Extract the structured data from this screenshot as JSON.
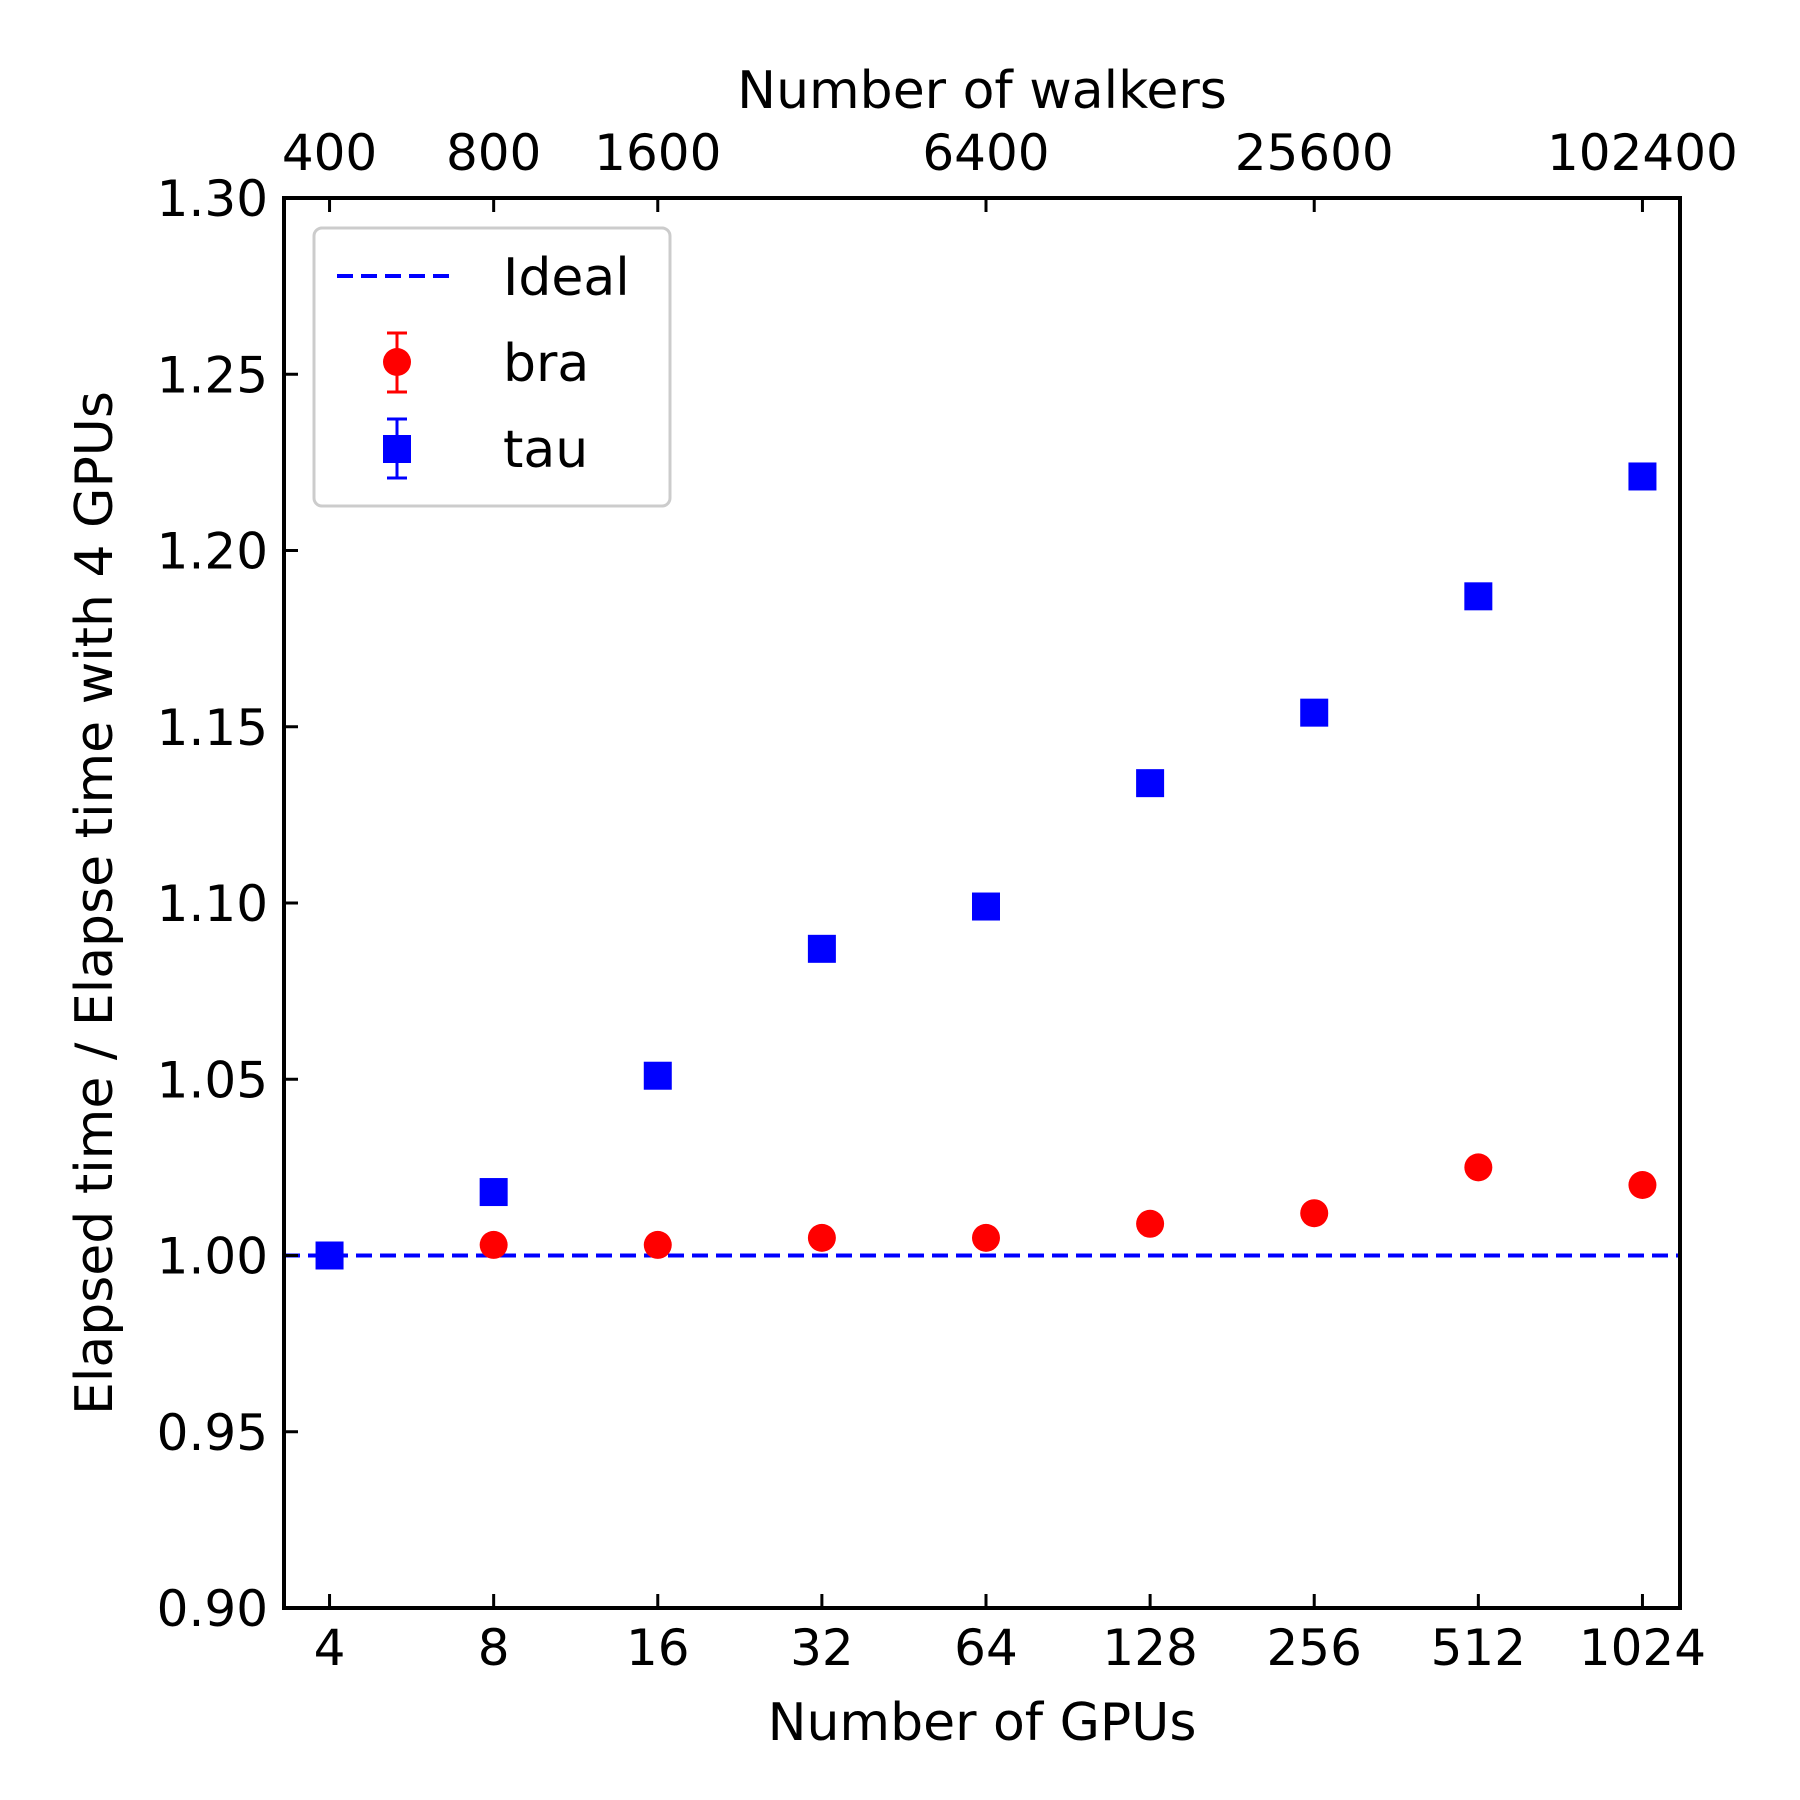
{
  "chart_data": {
    "type": "scatter",
    "xlabel": "Number of GPUs",
    "ylabel": "Elapsed time / Elapse time with 4 GPUs",
    "x2label": "Number of walkers",
    "x_scale": "log2",
    "xlim_gpus": [
      3.3,
      1200
    ],
    "ylim": [
      0.9,
      1.3
    ],
    "xticks": [
      4,
      8,
      16,
      32,
      64,
      128,
      256,
      512,
      1024
    ],
    "xtick_labels": [
      "4",
      "8",
      "16",
      "32",
      "64",
      "128",
      "256",
      "512",
      "1024"
    ],
    "x2ticks_gpus": [
      4,
      8,
      16,
      64,
      256,
      1024
    ],
    "x2tick_labels": [
      "400",
      "800",
      "1600",
      "6400",
      "25600",
      "102400"
    ],
    "yticks": [
      0.9,
      0.95,
      1.0,
      1.05,
      1.1,
      1.15,
      1.2,
      1.25,
      1.3
    ],
    "ytick_labels": [
      "0.90",
      "0.95",
      "1.00",
      "1.05",
      "1.10",
      "1.15",
      "1.20",
      "1.25",
      "1.30"
    ],
    "legend_position": "top-left",
    "grid": false,
    "ideal": {
      "name": "Ideal",
      "y": 1.0,
      "color": "#0000ff",
      "style": "dashed"
    },
    "series": [
      {
        "name": "bra",
        "marker": "circle",
        "color": "#ff0000",
        "x": [
          8,
          16,
          32,
          64,
          128,
          256,
          512,
          1024
        ],
        "y": [
          1.003,
          1.003,
          1.005,
          1.005,
          1.009,
          1.012,
          1.025,
          1.02
        ]
      },
      {
        "name": "tau",
        "marker": "square",
        "color": "#0000ff",
        "x": [
          4,
          8,
          16,
          32,
          64,
          128,
          256,
          512,
          1024
        ],
        "y": [
          1.0,
          1.018,
          1.051,
          1.087,
          1.099,
          1.134,
          1.154,
          1.187,
          1.221
        ]
      }
    ]
  }
}
